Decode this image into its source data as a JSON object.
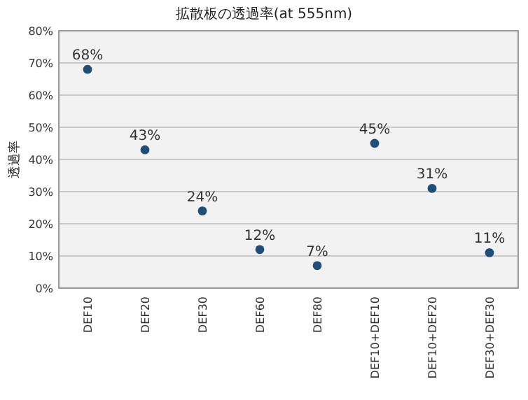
{
  "chart_data": {
    "type": "scatter",
    "title": "拡散板の透過率(at 555nm)",
    "ylabel": "透過率",
    "categories": [
      "DEF10",
      "DEF20",
      "DEF30",
      "DEF60",
      "DEF80",
      "DEF10+DEF10",
      "DEF10+DEF20",
      "DEF30+DEF30"
    ],
    "series": [
      {
        "color": "#1f4e79",
        "values": [
          68,
          43,
          24,
          12,
          7,
          45,
          31,
          11
        ],
        "value_labels": [
          "68%",
          "43%",
          "24%",
          "12%",
          "7%",
          "45%",
          "31%",
          "11%"
        ]
      }
    ],
    "ylim": [
      0,
      80
    ],
    "yticks": [
      {
        "value": 0,
        "label": "0%"
      },
      {
        "value": 10,
        "label": "10%"
      },
      {
        "value": 20,
        "label": "20%"
      },
      {
        "value": 30,
        "label": "30%"
      },
      {
        "value": 40,
        "label": "40%"
      },
      {
        "value": 50,
        "label": "50%"
      },
      {
        "value": 60,
        "label": "60%"
      },
      {
        "value": 70,
        "label": "70%"
      },
      {
        "value": 80,
        "label": "80%"
      }
    ],
    "grid": "y",
    "marker": "circle"
  }
}
